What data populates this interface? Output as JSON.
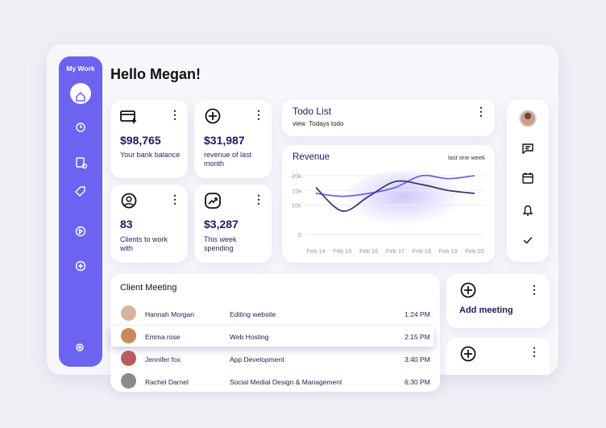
{
  "sidebar": {
    "title": "My Work"
  },
  "greeting": "Hello Megan!",
  "stats": [
    {
      "value": "$98,765",
      "label": "Your bank balance"
    },
    {
      "value": "$31,987",
      "label": "revenue of last month"
    },
    {
      "value": "83",
      "label": "Clients to work with"
    },
    {
      "value": "$3,287",
      "label": "This week spending"
    }
  ],
  "todo": {
    "title": "Todo List",
    "subtitle": "view  Todays todo"
  },
  "revenue": {
    "title": "Revenue",
    "period": "last one week",
    "categories": [
      "Feb 14",
      "Feb 15",
      "Feb 16",
      "Feb 17",
      "Feb 18",
      "Feb 19",
      "Feb 20"
    ],
    "ylim": [
      0,
      20000
    ],
    "yticks": [
      {
        "value": 20000,
        "label": "20k"
      },
      {
        "value": 15000,
        "label": "15k"
      },
      {
        "value": 10000,
        "label": "10k"
      },
      0
    ],
    "series": [
      {
        "color": "#6c63f0",
        "values": [
          14000,
          13000,
          14000,
          16000,
          20000,
          19000,
          20000
        ]
      },
      {
        "color": "#3d3b6e",
        "values": [
          16000,
          8000,
          13000,
          18000,
          17000,
          15000,
          14000
        ]
      }
    ]
  },
  "meeting": {
    "title": "Client Meeting",
    "rows": [
      [
        "Hannah Morgan",
        "Editing website",
        "1:24 PM"
      ],
      [
        "Emma rose",
        "Web Hosting",
        "2:15 PM"
      ],
      [
        "Jennifer fox",
        "App Development",
        "3:40 PM"
      ],
      [
        "Rachel Darnel",
        "Social Medial Design & Management",
        "6:30 PM"
      ]
    ]
  },
  "actions": [
    {
      "label": "Add meeting"
    }
  ]
}
